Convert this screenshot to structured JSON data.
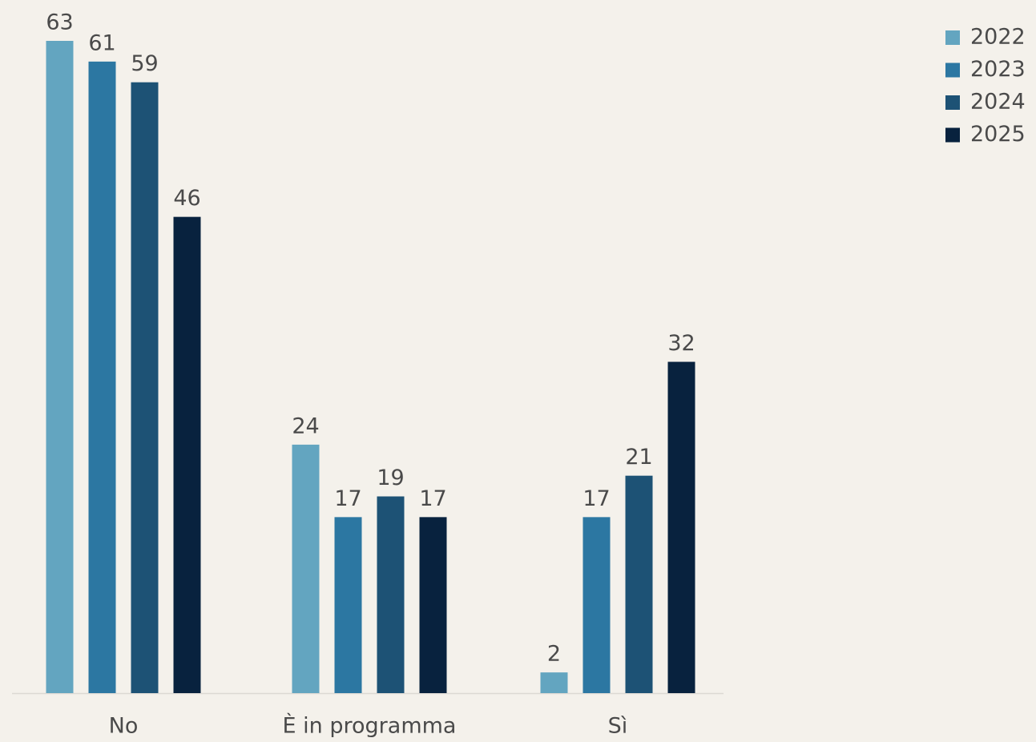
{
  "chart_data": {
    "type": "bar",
    "categories": [
      "No",
      "È in programma",
      "Sì"
    ],
    "series": [
      {
        "name": "2022",
        "color": "#63a5c0",
        "values": [
          63,
          24,
          2
        ]
      },
      {
        "name": "2023",
        "color": "#2c77a2",
        "values": [
          61,
          17,
          17
        ]
      },
      {
        "name": "2024",
        "color": "#1d5275",
        "values": [
          59,
          19,
          21
        ]
      },
      {
        "name": "2025",
        "color": "#08223e",
        "values": [
          46,
          17,
          32
        ]
      }
    ],
    "legend": "top-right"
  }
}
